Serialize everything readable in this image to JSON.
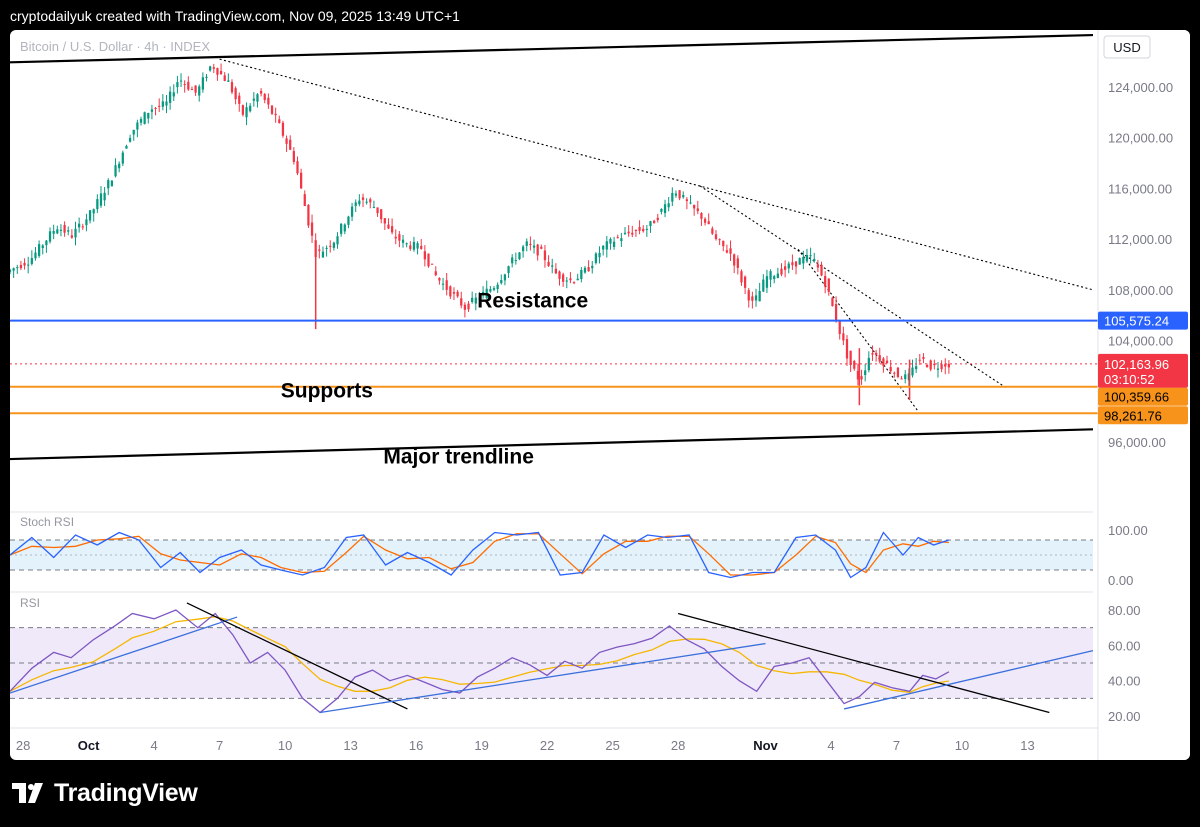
{
  "header": {
    "text": "cryptodailyuk created with TradingView.com, Nov 09, 2025 13:49 UTC+1"
  },
  "footer": {
    "brand": "TradingView"
  },
  "chart_data": {
    "type": "candlestick",
    "title": "Bitcoin / U.S. Dollar · 4h · INDEX",
    "currency": "USD",
    "price_ticks": [
      "124,000.00",
      "120,000.00",
      "116,000.00",
      "112,000.00",
      "108,000.00",
      "104,000.00",
      "96,000.00"
    ],
    "price_tick_values": [
      124000,
      120000,
      116000,
      112000,
      108000,
      104000,
      96000
    ],
    "price_range": [
      93000,
      128500
    ],
    "x_labels": [
      "28",
      "Oct",
      "4",
      "7",
      "10",
      "13",
      "16",
      "19",
      "22",
      "25",
      "28",
      "Nov",
      "4",
      "7",
      "10",
      "13"
    ],
    "x_day_index": [
      -3,
      0,
      3,
      6,
      9,
      12,
      15,
      18,
      21,
      24,
      27,
      31,
      34,
      37,
      40,
      43
    ],
    "x_range_days": [
      -3.6,
      46
    ],
    "price_path": [
      [
        -3.6,
        109400
      ],
      [
        -2.5,
        110400
      ],
      [
        -1.3,
        113000
      ],
      [
        -0.6,
        112300
      ],
      [
        0.3,
        114100
      ],
      [
        1.2,
        116800
      ],
      [
        2.1,
        120400
      ],
      [
        3.0,
        122300
      ],
      [
        3.7,
        122600
      ],
      [
        4.3,
        124700
      ],
      [
        5.1,
        123500
      ],
      [
        5.8,
        125800
      ],
      [
        6.6,
        124300
      ],
      [
        7.2,
        121800
      ],
      [
        8.0,
        123600
      ],
      [
        8.8,
        121300
      ],
      [
        9.6,
        118200
      ],
      [
        10.2,
        113600
      ],
      [
        10.6,
        110700
      ],
      [
        11.4,
        111900
      ],
      [
        12.1,
        114000
      ],
      [
        12.6,
        115300
      ],
      [
        13.3,
        114500
      ],
      [
        14.0,
        112400
      ],
      [
        14.7,
        111600
      ],
      [
        15.4,
        111300
      ],
      [
        16.1,
        109000
      ],
      [
        16.8,
        107700
      ],
      [
        17.4,
        106600
      ],
      [
        18.1,
        107500
      ],
      [
        18.8,
        108400
      ],
      [
        19.5,
        110100
      ],
      [
        20.2,
        111600
      ],
      [
        20.9,
        110900
      ],
      [
        21.6,
        109200
      ],
      [
        22.3,
        108700
      ],
      [
        23.0,
        109600
      ],
      [
        23.7,
        111300
      ],
      [
        24.4,
        112100
      ],
      [
        25.1,
        112600
      ],
      [
        25.8,
        112900
      ],
      [
        26.4,
        114200
      ],
      [
        27.0,
        115900
      ],
      [
        27.7,
        114600
      ],
      [
        28.3,
        113700
      ],
      [
        28.9,
        111900
      ],
      [
        29.6,
        110800
      ],
      [
        30.2,
        108200
      ],
      [
        30.6,
        106800
      ],
      [
        31.2,
        109000
      ],
      [
        32.0,
        109600
      ],
      [
        32.7,
        110300
      ],
      [
        33.3,
        110600
      ],
      [
        33.9,
        108600
      ],
      [
        34.5,
        105100
      ],
      [
        35.0,
        102300
      ],
      [
        35.5,
        100800
      ],
      [
        36.0,
        103200
      ],
      [
        36.6,
        102300
      ],
      [
        37.2,
        101300
      ],
      [
        37.7,
        101000
      ],
      [
        38.2,
        102600
      ],
      [
        38.8,
        101900
      ],
      [
        39.4,
        102164
      ]
    ],
    "wicks": [
      {
        "day": 10.4,
        "low": 104900,
        "high": 110800,
        "label": "flash wick"
      },
      {
        "day": 35.3,
        "low": 98900,
        "high": 103400
      },
      {
        "day": 37.6,
        "low": 99300,
        "high": 102500
      }
    ],
    "levels": [
      {
        "name": "Resistance",
        "value": 105575.24,
        "label": "105,575.24",
        "color": "#2962ff"
      },
      {
        "name": "Supports",
        "value": 100359.66,
        "label": "100,359.66",
        "color": "#f7931a"
      },
      {
        "name": "",
        "value": 98261.76,
        "label": "98,261.76",
        "color": "#f7931a"
      }
    ],
    "last_price": {
      "value": 102163.96,
      "label": "102,163.96",
      "countdown": "03:10:52",
      "color": "#f23645"
    },
    "annotations": [
      "Resistance",
      "Supports",
      "Major trendline"
    ],
    "trendlines": [
      {
        "name": "upper-channel",
        "style": "solid",
        "from": [
          -3.6,
          125950
        ],
        "to": [
          46,
          128100
        ]
      },
      {
        "name": "major-trendline",
        "style": "solid",
        "from": [
          -3.6,
          94650
        ],
        "to": [
          46,
          97000
        ]
      },
      {
        "name": "descending-1",
        "style": "dotted",
        "from": [
          6.0,
          126200
        ],
        "to": [
          46,
          108000
        ]
      },
      {
        "name": "descending-2",
        "style": "dotted",
        "from": [
          28.0,
          116200
        ],
        "to": [
          42.0,
          100300
        ]
      },
      {
        "name": "descending-3",
        "style": "dotted",
        "from": [
          32.5,
          111200
        ],
        "to": [
          38.0,
          98400
        ]
      }
    ],
    "stoch_rsi": {
      "name": "Stoch RSI",
      "ticks": [
        "100.00",
        "0.00"
      ],
      "tick_values": [
        100,
        0
      ],
      "bands": [
        80,
        20
      ],
      "k_path": [
        [
          -3.6,
          50
        ],
        [
          -2.6,
          85
        ],
        [
          -1.6,
          45
        ],
        [
          -0.6,
          90
        ],
        [
          0.4,
          70
        ],
        [
          1.4,
          95
        ],
        [
          2.3,
          80
        ],
        [
          3.3,
          25
        ],
        [
          4.2,
          55
        ],
        [
          5.1,
          15
        ],
        [
          6.0,
          45
        ],
        [
          7.0,
          60
        ],
        [
          7.9,
          30
        ],
        [
          8.8,
          20
        ],
        [
          9.8,
          10
        ],
        [
          10.8,
          25
        ],
        [
          11.8,
          85
        ],
        [
          12.6,
          90
        ],
        [
          13.6,
          30
        ],
        [
          14.6,
          55
        ],
        [
          15.6,
          35
        ],
        [
          16.6,
          10
        ],
        [
          17.6,
          60
        ],
        [
          18.6,
          95
        ],
        [
          19.6,
          90
        ],
        [
          20.6,
          95
        ],
        [
          21.6,
          10
        ],
        [
          22.6,
          15
        ],
        [
          23.6,
          90
        ],
        [
          24.6,
          65
        ],
        [
          25.6,
          90
        ],
        [
          26.5,
          85
        ],
        [
          27.5,
          90
        ],
        [
          28.4,
          15
        ],
        [
          29.4,
          5
        ],
        [
          30.4,
          15
        ],
        [
          31.4,
          15
        ],
        [
          32.4,
          85
        ],
        [
          33.3,
          90
        ],
        [
          34.2,
          60
        ],
        [
          34.9,
          5
        ],
        [
          35.6,
          25
        ],
        [
          36.4,
          95
        ],
        [
          37.3,
          50
        ],
        [
          38.0,
          85
        ],
        [
          38.7,
          70
        ],
        [
          39.4,
          80
        ]
      ]
    },
    "rsi": {
      "name": "RSI",
      "ticks": [
        "80.00",
        "60.00",
        "40.00",
        "20.00"
      ],
      "tick_values": [
        80,
        60,
        40,
        20
      ],
      "bands": [
        70,
        50,
        30
      ],
      "rsi_path": [
        [
          -3.6,
          34
        ],
        [
          -2.6,
          47
        ],
        [
          -1.6,
          56
        ],
        [
          -0.8,
          53
        ],
        [
          0.2,
          63
        ],
        [
          1.2,
          71
        ],
        [
          2.0,
          78
        ],
        [
          3.0,
          75
        ],
        [
          4.0,
          80
        ],
        [
          5.0,
          70
        ],
        [
          5.8,
          78
        ],
        [
          6.6,
          66
        ],
        [
          7.4,
          50
        ],
        [
          8.2,
          56
        ],
        [
          9.0,
          46
        ],
        [
          9.8,
          30
        ],
        [
          10.6,
          22
        ],
        [
          11.4,
          30
        ],
        [
          12.2,
          42
        ],
        [
          13.0,
          46
        ],
        [
          13.8,
          40
        ],
        [
          14.6,
          43
        ],
        [
          15.4,
          39
        ],
        [
          16.2,
          35
        ],
        [
          17.0,
          33
        ],
        [
          17.8,
          42
        ],
        [
          18.6,
          47
        ],
        [
          19.4,
          53
        ],
        [
          20.2,
          49
        ],
        [
          21.0,
          43
        ],
        [
          21.8,
          51
        ],
        [
          22.6,
          47
        ],
        [
          23.4,
          56
        ],
        [
          24.2,
          59
        ],
        [
          25.0,
          61
        ],
        [
          25.8,
          64
        ],
        [
          26.6,
          71
        ],
        [
          27.4,
          63
        ],
        [
          28.2,
          58
        ],
        [
          29.0,
          48
        ],
        [
          29.8,
          40
        ],
        [
          30.6,
          34
        ],
        [
          31.4,
          48
        ],
        [
          32.2,
          50
        ],
        [
          33.0,
          53
        ],
        [
          33.8,
          40
        ],
        [
          34.6,
          27
        ],
        [
          35.3,
          31
        ],
        [
          36.0,
          39
        ],
        [
          36.8,
          36
        ],
        [
          37.6,
          34
        ],
        [
          38.2,
          43
        ],
        [
          38.8,
          41
        ],
        [
          39.4,
          45
        ]
      ],
      "trendlines": [
        {
          "style": "solid",
          "color": "#3b6fdc",
          "from": [
            -3.6,
            33
          ],
          "to": [
            6.8,
            76
          ]
        },
        {
          "style": "solid",
          "color": "#000000",
          "from": [
            4.5,
            84
          ],
          "to": [
            14.6,
            24
          ]
        },
        {
          "style": "solid",
          "color": "#3b6fdc",
          "from": [
            10.6,
            22
          ],
          "to": [
            31.0,
            61
          ]
        },
        {
          "style": "solid",
          "color": "#000000",
          "from": [
            27.0,
            78
          ],
          "to": [
            44.0,
            22
          ]
        },
        {
          "style": "solid",
          "color": "#3b6fdc",
          "from": [
            34.6,
            24
          ],
          "to": [
            46.0,
            57
          ]
        }
      ]
    }
  }
}
